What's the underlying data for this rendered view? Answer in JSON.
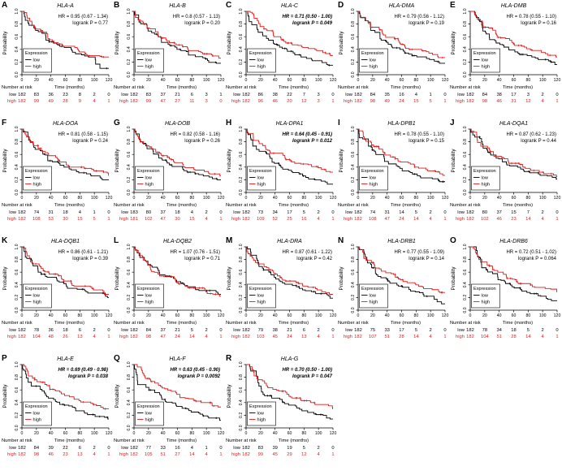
{
  "figure": {
    "legend_title": "Expression",
    "legend_low": "low",
    "legend_high": "high",
    "ylabel": "Probability",
    "xlabel": "Time (months)",
    "risk_title": "Number at risk",
    "risk_row_low": "low",
    "risk_row_high": "high",
    "xticks": [
      0,
      20,
      40,
      60,
      80,
      100,
      120
    ],
    "yticks": [
      "0.0",
      "0.2",
      "0.4",
      "0.6",
      "0.8",
      "1.0"
    ],
    "ylim": [
      0,
      1
    ],
    "xlim": [
      0,
      120
    ],
    "colors": {
      "low": "#000000",
      "high": "#e41a1c"
    }
  },
  "chart_data": [
    {
      "type": "line",
      "letter": "A",
      "gene": "HLA-A",
      "hr": "HR = 0.95 (0.67 - 1.34)",
      "p": "logrank P = 0.77",
      "significant": false,
      "x_months": [
        0,
        20,
        40,
        60,
        80,
        100,
        120
      ],
      "survival": {
        "low": [
          1,
          0.7,
          0.52,
          0.43,
          0.33,
          0.28,
          0.1
        ],
        "high": [
          1,
          0.72,
          0.55,
          0.45,
          0.36,
          0.3,
          0.28
        ]
      },
      "number_at_risk": {
        "low": [
          182,
          83,
          36,
          23,
          8,
          2,
          0
        ],
        "high": [
          182,
          99,
          49,
          28,
          9,
          4,
          1
        ]
      }
    },
    {
      "type": "line",
      "letter": "B",
      "gene": "HLA-B",
      "hr": "HR = 0.8 (0.57 - 1.13)",
      "p": "logrank P = 0.20",
      "significant": false,
      "x_months": [
        0,
        20,
        40,
        60,
        80,
        100,
        120
      ],
      "survival": {
        "low": [
          1,
          0.69,
          0.51,
          0.4,
          0.31,
          0.25,
          0.18
        ],
        "high": [
          1,
          0.74,
          0.58,
          0.47,
          0.38,
          0.33,
          0.26
        ]
      },
      "number_at_risk": {
        "low": [
          182,
          83,
          37,
          21,
          6,
          3,
          1
        ],
        "high": [
          182,
          99,
          47,
          27,
          11,
          3,
          0
        ]
      }
    },
    {
      "type": "line",
      "letter": "C",
      "gene": "HLA-C",
      "hr": "HR = 0.71 (0.50 - 1.00)",
      "p": "logrank P = 0.049",
      "significant": true,
      "x_months": [
        0,
        20,
        40,
        60,
        80,
        100,
        120
      ],
      "survival": {
        "low": [
          1,
          0.67,
          0.48,
          0.37,
          0.28,
          0.22,
          0.15
        ],
        "high": [
          1,
          0.76,
          0.6,
          0.5,
          0.43,
          0.38,
          0.3
        ]
      },
      "number_at_risk": {
        "low": [
          182,
          86,
          38,
          22,
          7,
          3,
          0
        ],
        "high": [
          182,
          96,
          46,
          20,
          12,
          3,
          1
        ]
      }
    },
    {
      "type": "line",
      "letter": "D",
      "gene": "HLA-DMA",
      "hr": "HR = 0.79 (0.56 - 1.12)",
      "p": "logrank P = 0.19",
      "significant": false,
      "x_months": [
        0,
        20,
        40,
        60,
        80,
        100,
        120
      ],
      "survival": {
        "low": [
          1,
          0.7,
          0.51,
          0.4,
          0.3,
          0.24,
          0.18
        ],
        "high": [
          1,
          0.75,
          0.59,
          0.48,
          0.4,
          0.34,
          0.27
        ]
      },
      "number_at_risk": {
        "low": [
          182,
          84,
          35,
          16,
          4,
          1,
          0
        ],
        "high": [
          182,
          98,
          49,
          24,
          15,
          5,
          1
        ]
      }
    },
    {
      "type": "line",
      "letter": "E",
      "gene": "HLA-DMB",
      "hr": "HR = 0.78 (0.55 - 1.10)",
      "p": "logrank P = 0.16",
      "significant": false,
      "x_months": [
        0,
        20,
        40,
        60,
        80,
        100,
        120
      ],
      "survival": {
        "low": [
          1,
          0.69,
          0.5,
          0.39,
          0.3,
          0.24,
          0.16
        ],
        "high": [
          1,
          0.75,
          0.59,
          0.49,
          0.41,
          0.35,
          0.28
        ]
      },
      "number_at_risk": {
        "low": [
          182,
          84,
          38,
          17,
          3,
          2,
          0
        ],
        "high": [
          182,
          98,
          46,
          31,
          12,
          4,
          1
        ]
      }
    },
    {
      "type": "line",
      "letter": "F",
      "gene": "HLA-DOA",
      "hr": "HR = 0.81 (0.58 - 1.15)",
      "p": "logrank P = 0.24",
      "significant": false,
      "x_months": [
        0,
        20,
        40,
        60,
        80,
        100,
        120
      ],
      "survival": {
        "low": [
          1,
          0.68,
          0.5,
          0.4,
          0.31,
          0.26,
          0.2
        ],
        "high": [
          1,
          0.74,
          0.58,
          0.48,
          0.4,
          0.34,
          0.27
        ]
      },
      "number_at_risk": {
        "low": [
          182,
          74,
          31,
          18,
          4,
          1,
          0
        ],
        "high": [
          182,
          108,
          53,
          30,
          15,
          5,
          1
        ]
      }
    },
    {
      "type": "line",
      "letter": "G",
      "gene": "HLA-DOB",
      "hr": "HR = 0.82 (0.58 - 1.16)",
      "p": "logrank P = 0.26",
      "significant": false,
      "x_months": [
        0,
        20,
        40,
        60,
        80,
        100,
        120
      ],
      "survival": {
        "low": [
          1,
          0.69,
          0.51,
          0.41,
          0.32,
          0.26,
          0.2
        ],
        "high": [
          1,
          0.74,
          0.58,
          0.47,
          0.39,
          0.33,
          0.26
        ]
      },
      "number_at_risk": {
        "low": [
          183,
          80,
          37,
          18,
          4,
          2,
          0
        ],
        "high": [
          181,
          102,
          47,
          30,
          15,
          4,
          1
        ]
      }
    },
    {
      "type": "line",
      "letter": "H",
      "gene": "HLA-DPA1",
      "hr": "HR = 0.64 (0.45 - 0.91)",
      "p": "logrank P = 0.012",
      "significant": true,
      "x_months": [
        0,
        20,
        40,
        60,
        80,
        100,
        120
      ],
      "survival": {
        "low": [
          1,
          0.65,
          0.46,
          0.35,
          0.26,
          0.2,
          0.13
        ],
        "high": [
          1,
          0.77,
          0.62,
          0.52,
          0.45,
          0.39,
          0.32
        ]
      },
      "number_at_risk": {
        "low": [
          182,
          73,
          34,
          17,
          5,
          2,
          0
        ],
        "high": [
          182,
          109,
          52,
          25,
          16,
          4,
          1
        ]
      }
    },
    {
      "type": "line",
      "letter": "I",
      "gene": "HLA-DPB1",
      "hr": "HR = 0.78 (0.55 - 1.10)",
      "p": "logrank P = 0.15",
      "significant": false,
      "x_months": [
        0,
        20,
        40,
        60,
        80,
        100,
        120
      ],
      "survival": {
        "low": [
          1,
          0.67,
          0.49,
          0.38,
          0.29,
          0.23,
          0.17
        ],
        "high": [
          1,
          0.75,
          0.59,
          0.48,
          0.4,
          0.34,
          0.27
        ]
      },
      "number_at_risk": {
        "low": [
          182,
          74,
          31,
          14,
          5,
          2,
          0
        ],
        "high": [
          182,
          108,
          47,
          24,
          14,
          4,
          1
        ]
      }
    },
    {
      "type": "line",
      "letter": "J",
      "gene": "HLA-DQA1",
      "hr": "HR = 0.87 (0.62 - 1.23)",
      "p": "logrank P = 0.44",
      "significant": false,
      "x_months": [
        0,
        20,
        40,
        60,
        80,
        100,
        120
      ],
      "survival": {
        "low": [
          1,
          0.7,
          0.53,
          0.42,
          0.33,
          0.27,
          0.21
        ],
        "high": [
          1,
          0.73,
          0.57,
          0.46,
          0.38,
          0.32,
          0.25
        ]
      },
      "number_at_risk": {
        "low": [
          182,
          80,
          37,
          15,
          7,
          2,
          0
        ],
        "high": [
          182,
          102,
          46,
          23,
          14,
          4,
          1
        ]
      }
    },
    {
      "type": "line",
      "letter": "K",
      "gene": "HLA-DQB1",
      "hr": "HR = 0.86 (0.61 - 1.21)",
      "p": "logrank P = 0.39",
      "significant": false,
      "x_months": [
        0,
        20,
        40,
        60,
        80,
        100,
        120
      ],
      "survival": {
        "low": [
          1,
          0.7,
          0.52,
          0.42,
          0.33,
          0.27,
          0.2
        ],
        "high": [
          1,
          0.73,
          0.57,
          0.46,
          0.38,
          0.32,
          0.25
        ]
      },
      "number_at_risk": {
        "low": [
          182,
          78,
          36,
          18,
          6,
          2,
          0
        ],
        "high": [
          182,
          104,
          48,
          26,
          13,
          4,
          1
        ]
      }
    },
    {
      "type": "line",
      "letter": "L",
      "gene": "HLA-DQB2",
      "hr": "HR = 1.07 (0.76 - 1.51)",
      "p": "logrank P = 0.71",
      "significant": false,
      "x_months": [
        0,
        20,
        40,
        60,
        80,
        100,
        120
      ],
      "survival": {
        "low": [
          1,
          0.72,
          0.56,
          0.45,
          0.37,
          0.31,
          0.25
        ],
        "high": [
          1,
          0.71,
          0.54,
          0.43,
          0.35,
          0.29,
          0.22
        ]
      },
      "number_at_risk": {
        "low": [
          182,
          84,
          37,
          21,
          5,
          2,
          0
        ],
        "high": [
          182,
          98,
          47,
          24,
          14,
          4,
          1
        ]
      }
    },
    {
      "type": "line",
      "letter": "M",
      "gene": "HLA-DRA",
      "hr": "HR = 0.87 (0.61 - 1.22)",
      "p": "logrank P = 0.42",
      "significant": false,
      "x_months": [
        0,
        20,
        40,
        60,
        80,
        100,
        120
      ],
      "survival": {
        "low": [
          1,
          0.69,
          0.52,
          0.41,
          0.32,
          0.26,
          0.19
        ],
        "high": [
          1,
          0.73,
          0.57,
          0.46,
          0.38,
          0.32,
          0.25
        ]
      },
      "number_at_risk": {
        "low": [
          182,
          79,
          38,
          21,
          6,
          2,
          0
        ],
        "high": [
          182,
          103,
          45,
          24,
          13,
          4,
          1
        ]
      }
    },
    {
      "type": "line",
      "letter": "N",
      "gene": "HLA-DRB1",
      "hr": "HR = 0.77 (0.55 - 1.09)",
      "p": "logrank P = 0.14",
      "significant": false,
      "x_months": [
        0,
        20,
        40,
        60,
        80,
        100,
        120
      ],
      "survival": {
        "low": [
          1,
          0.67,
          0.49,
          0.38,
          0.29,
          0.22,
          0.1
        ],
        "high": [
          1,
          0.75,
          0.59,
          0.48,
          0.4,
          0.34,
          0.28
        ]
      },
      "number_at_risk": {
        "low": [
          182,
          75,
          33,
          17,
          5,
          2,
          0
        ],
        "high": [
          182,
          107,
          51,
          28,
          14,
          4,
          1
        ]
      }
    },
    {
      "type": "line",
      "letter": "O",
      "gene": "HLA-DRB6",
      "hr": "HR = 0.72 (0.51 - 1.02)",
      "p": "logrank P = 0.064",
      "significant": false,
      "x_months": [
        0,
        20,
        40,
        60,
        80,
        100,
        120
      ],
      "survival": {
        "low": [
          1,
          0.67,
          0.48,
          0.37,
          0.28,
          0.22,
          0.15
        ],
        "high": [
          1,
          0.76,
          0.6,
          0.49,
          0.42,
          0.36,
          0.29
        ]
      },
      "number_at_risk": {
        "low": [
          182,
          78,
          34,
          18,
          5,
          2,
          0
        ],
        "high": [
          182,
          104,
          51,
          28,
          14,
          4,
          1
        ]
      }
    },
    {
      "type": "line",
      "letter": "P",
      "gene": "HLA-E",
      "hr": "HR = 0.69 (0.49 - 0.98)",
      "p": "logrank P = 0.038",
      "significant": true,
      "x_months": [
        0,
        20,
        40,
        60,
        80,
        100,
        120
      ],
      "survival": {
        "low": [
          1,
          0.66,
          0.47,
          0.36,
          0.27,
          0.21,
          0.14
        ],
        "high": [
          1,
          0.76,
          0.61,
          0.51,
          0.43,
          0.37,
          0.3
        ]
      },
      "number_at_risk": {
        "low": [
          182,
          84,
          39,
          22,
          6,
          2,
          0
        ],
        "high": [
          182,
          98,
          46,
          23,
          13,
          4,
          1
        ]
      }
    },
    {
      "type": "line",
      "letter": "Q",
      "gene": "HLA-F",
      "hr": "HR = 0.63 (0.45 - 0.90)",
      "p": "logrank P = 0.0092",
      "significant": true,
      "x_months": [
        0,
        20,
        40,
        60,
        80,
        100,
        120
      ],
      "survival": {
        "low": [
          1,
          0.64,
          0.45,
          0.34,
          0.25,
          0.19,
          0.12
        ],
        "high": [
          1,
          0.78,
          0.63,
          0.53,
          0.46,
          0.4,
          0.33
        ]
      },
      "number_at_risk": {
        "low": [
          182,
          77,
          33,
          16,
          4,
          1,
          0
        ],
        "high": [
          182,
          105,
          51,
          27,
          14,
          4,
          1
        ]
      }
    },
    {
      "type": "line",
      "letter": "R",
      "gene": "HLA-G",
      "hr": "HR = 0.70 (0.50 - 1.00)",
      "p": "logrank P = 0.047",
      "significant": true,
      "x_months": [
        0,
        20,
        40,
        60,
        80,
        100,
        120
      ],
      "survival": {
        "low": [
          1,
          0.66,
          0.47,
          0.36,
          0.27,
          0.21,
          0.14
        ],
        "high": [
          1,
          0.76,
          0.61,
          0.5,
          0.43,
          0.37,
          0.3
        ]
      },
      "number_at_risk": {
        "low": [
          182,
          83,
          39,
          19,
          5,
          2,
          0
        ],
        "high": [
          182,
          99,
          45,
          29,
          12,
          4,
          1
        ]
      }
    }
  ]
}
